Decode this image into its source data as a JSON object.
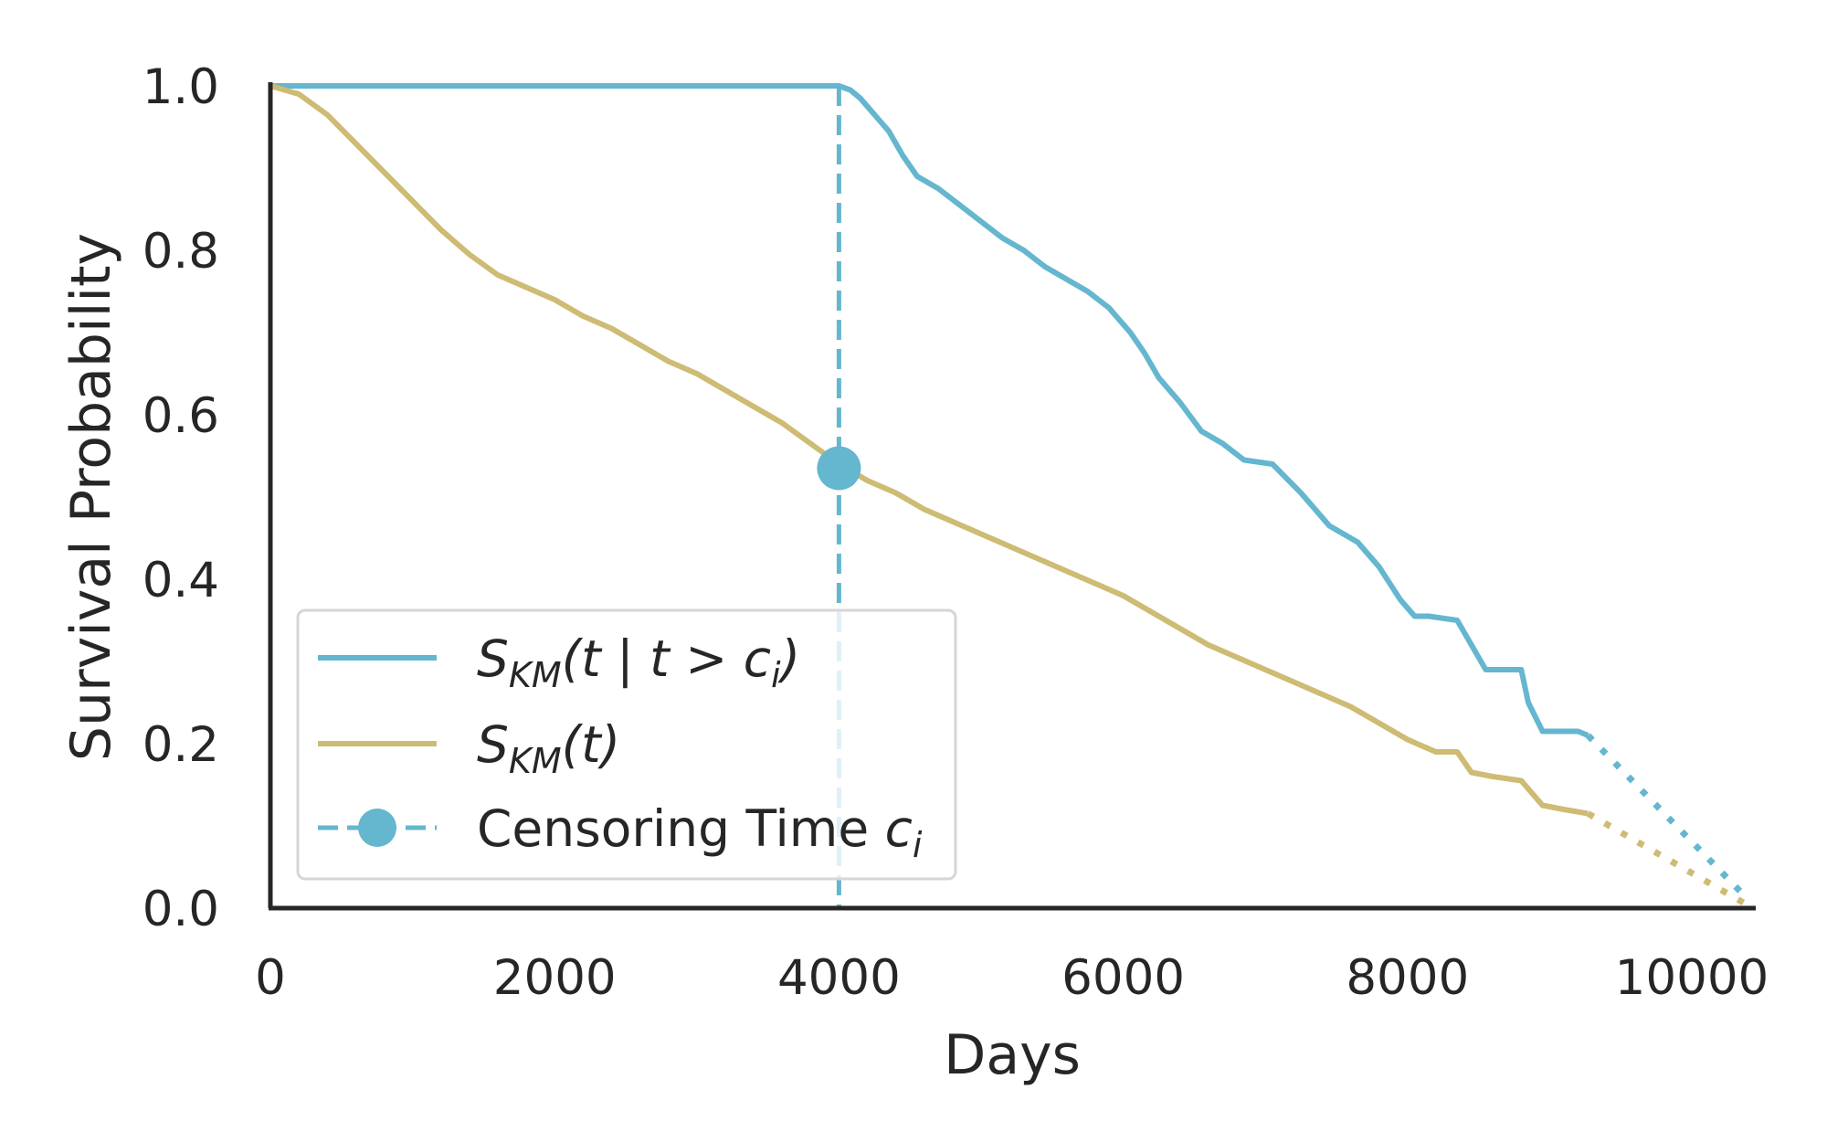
{
  "chart_data": {
    "type": "line",
    "xlabel": "Days",
    "ylabel": "Survival Probability",
    "xlim": [
      0,
      10450
    ],
    "ylim": [
      0,
      1.0
    ],
    "x_ticks": [
      0,
      2000,
      4000,
      6000,
      8000,
      10000
    ],
    "x_tick_labels": [
      "0",
      "2000",
      "4000",
      "6000",
      "8000",
      "10000"
    ],
    "y_ticks": [
      0.0,
      0.2,
      0.4,
      0.6,
      0.8,
      1.0
    ],
    "y_tick_labels": [
      "0.0",
      "0.2",
      "0.4",
      "0.6",
      "0.8",
      "1.0"
    ],
    "grid": false,
    "legend_position": "lower-left",
    "colors": {
      "conditional": "#65b6cf",
      "marginal": "#cebb74",
      "axis": "#262626",
      "legend_border": "#d6d6d6"
    },
    "series": [
      {
        "name": "S_KM(t | t > c_i)",
        "legend_parts": {
          "main": "S",
          "sub": "KM",
          "args": "(t | t > c",
          "sub2": "i",
          "close": ")"
        },
        "color": "#65b6cf",
        "style": "solid",
        "x": [
          0,
          4000,
          4080,
          4150,
          4250,
          4350,
          4450,
          4550,
          4700,
          4850,
          5000,
          5150,
          5300,
          5450,
          5600,
          5750,
          5900,
          6050,
          6150,
          6250,
          6400,
          6550,
          6700,
          6850,
          7050,
          7250,
          7450,
          7650,
          7800,
          7950,
          8050,
          8150,
          8350,
          8450,
          8550,
          8800,
          8850,
          8950,
          9050,
          9200,
          9270
        ],
        "y": [
          1.0,
          1.0,
          0.995,
          0.985,
          0.965,
          0.945,
          0.915,
          0.89,
          0.875,
          0.855,
          0.835,
          0.815,
          0.8,
          0.78,
          0.765,
          0.75,
          0.73,
          0.7,
          0.675,
          0.645,
          0.615,
          0.58,
          0.565,
          0.545,
          0.54,
          0.505,
          0.465,
          0.445,
          0.415,
          0.375,
          0.355,
          0.355,
          0.35,
          0.32,
          0.29,
          0.29,
          0.25,
          0.215,
          0.215,
          0.215,
          0.21
        ]
      },
      {
        "name": "S_KM(t)",
        "legend_parts": {
          "main": "S",
          "sub": "KM",
          "args": "(t)"
        },
        "color": "#cebb74",
        "style": "solid",
        "x": [
          0,
          200,
          400,
          600,
          800,
          1000,
          1200,
          1400,
          1600,
          1800,
          2000,
          2200,
          2400,
          2600,
          2800,
          3000,
          3200,
          3400,
          3600,
          3800,
          4000,
          4200,
          4400,
          4600,
          4800,
          5000,
          5200,
          5400,
          5600,
          5800,
          6000,
          6200,
          6400,
          6600,
          6800,
          7000,
          7200,
          7400,
          7600,
          7800,
          8000,
          8200,
          8350,
          8450,
          8600,
          8800,
          8950,
          9100,
          9270
        ],
        "y": [
          1.0,
          0.99,
          0.965,
          0.93,
          0.895,
          0.86,
          0.825,
          0.795,
          0.77,
          0.755,
          0.74,
          0.72,
          0.705,
          0.685,
          0.665,
          0.65,
          0.63,
          0.61,
          0.59,
          0.565,
          0.54,
          0.52,
          0.505,
          0.485,
          0.47,
          0.455,
          0.44,
          0.425,
          0.41,
          0.395,
          0.38,
          0.36,
          0.34,
          0.32,
          0.305,
          0.29,
          0.275,
          0.26,
          0.245,
          0.225,
          0.205,
          0.19,
          0.19,
          0.165,
          0.16,
          0.155,
          0.125,
          0.12,
          0.115
        ]
      }
    ],
    "extrapolations": [
      {
        "series": "S_KM(t | t > c_i)",
        "style": "dotted",
        "color": "#65b6cf",
        "x": [
          9270,
          10400
        ],
        "y": [
          0.21,
          0.01
        ]
      },
      {
        "series": "S_KM(t)",
        "style": "dotted",
        "color": "#cebb74",
        "x": [
          9270,
          10380
        ],
        "y": [
          0.115,
          0.005
        ]
      }
    ],
    "censoring": {
      "name": "Censoring Time c_i",
      "legend_text": "Censoring Time ",
      "legend_math": "c",
      "legend_sub": "i",
      "color": "#65b6cf",
      "x": 4000,
      "y": 0.535,
      "style": "dashed vertical line with marker"
    }
  }
}
